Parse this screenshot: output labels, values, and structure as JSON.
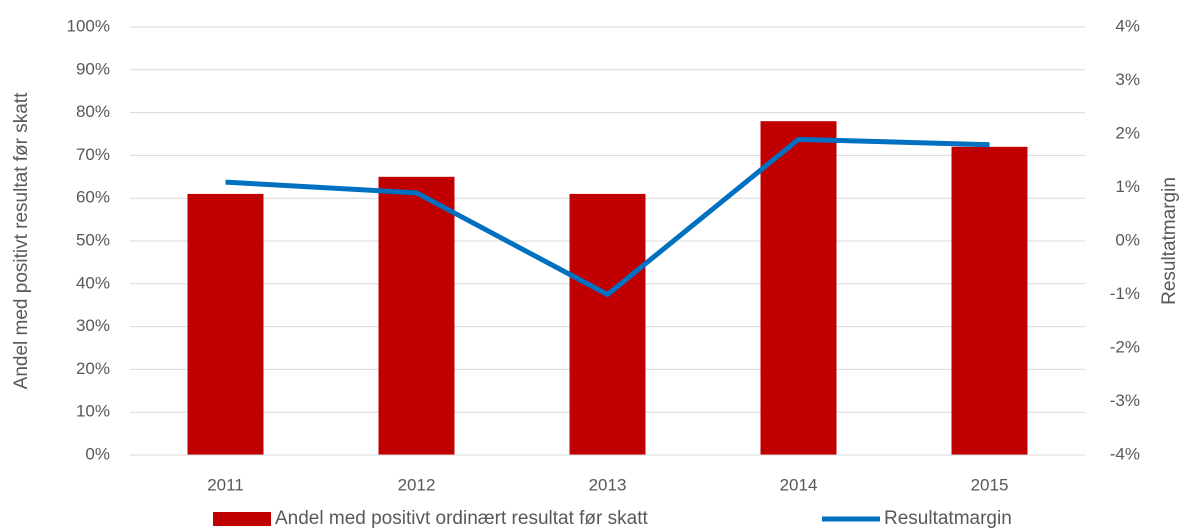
{
  "chart_data": {
    "type": "bar",
    "categories": [
      "2011",
      "2012",
      "2013",
      "2014",
      "2015"
    ],
    "series": [
      {
        "name": "Andel med positivt ordinært resultat før skatt",
        "type": "bar",
        "color": "#c00000",
        "values": [
          61,
          65,
          61,
          78,
          72
        ]
      },
      {
        "name": "Resultatmargin",
        "type": "line",
        "axis": "y2",
        "color": "#0070c0",
        "values": [
          1.1,
          0.9,
          -1.0,
          1.9,
          1.8
        ]
      }
    ],
    "ylabel": "Andel med positivt resultat før skatt",
    "y2label": "Resultatmargin",
    "ylim": [
      0,
      100
    ],
    "yticks": [
      {
        "value": 0,
        "label": "0%"
      },
      {
        "value": 10,
        "label": "10%"
      },
      {
        "value": 20,
        "label": "20%"
      },
      {
        "value": 30,
        "label": "30%"
      },
      {
        "value": 40,
        "label": "40%"
      },
      {
        "value": 50,
        "label": "50%"
      },
      {
        "value": 60,
        "label": "60%"
      },
      {
        "value": 70,
        "label": "70%"
      },
      {
        "value": 80,
        "label": "80%"
      },
      {
        "value": 90,
        "label": "90%"
      },
      {
        "value": 100,
        "label": "100%"
      }
    ],
    "y2lim": [
      -4,
      4
    ],
    "y2ticks": [
      {
        "value": -4,
        "label": "-4%"
      },
      {
        "value": -3,
        "label": "-3%"
      },
      {
        "value": -2,
        "label": "-2%"
      },
      {
        "value": -1,
        "label": "-1%"
      },
      {
        "value": 0,
        "label": "0%"
      },
      {
        "value": 1,
        "label": "1%"
      },
      {
        "value": 2,
        "label": "2%"
      },
      {
        "value": 3,
        "label": "3%"
      },
      {
        "value": 4,
        "label": "4%"
      }
    ],
    "grid": true,
    "legend": "bottom"
  }
}
